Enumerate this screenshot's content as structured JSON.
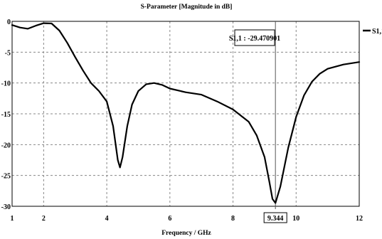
{
  "chart_data": {
    "type": "line",
    "title": "S-Parameter [Magnitude in dB]",
    "xlabel": "Frequency / GHz",
    "ylabel": "",
    "xlim": [
      1,
      12
    ],
    "ylim": [
      -30,
      0
    ],
    "xticks": [
      1,
      2,
      4,
      6,
      8,
      10,
      12
    ],
    "yticks": [
      0,
      -5,
      -10,
      -15,
      -20,
      -25,
      -30
    ],
    "ytick_labels": [
      "0",
      "-5",
      "-10",
      "-15",
      "-20",
      "-25",
      "-30"
    ],
    "grid": true,
    "legend_position": "top-right",
    "series": [
      {
        "name": "S1,1",
        "color": "#000000",
        "points": [
          [
            1.0,
            -0.6
          ],
          [
            1.25,
            -1.0
          ],
          [
            1.5,
            -1.2
          ],
          [
            1.75,
            -0.7
          ],
          [
            2.0,
            -0.3
          ],
          [
            2.25,
            -0.35
          ],
          [
            2.5,
            -1.5
          ],
          [
            2.75,
            -3.5
          ],
          [
            3.0,
            -5.8
          ],
          [
            3.25,
            -8.0
          ],
          [
            3.5,
            -10.0
          ],
          [
            3.75,
            -11.3
          ],
          [
            4.0,
            -13.0
          ],
          [
            4.2,
            -17.0
          ],
          [
            4.35,
            -22.5
          ],
          [
            4.42,
            -23.7
          ],
          [
            4.5,
            -22.0
          ],
          [
            4.65,
            -17.0
          ],
          [
            4.8,
            -13.5
          ],
          [
            5.0,
            -11.3
          ],
          [
            5.25,
            -10.2
          ],
          [
            5.5,
            -10.0
          ],
          [
            5.75,
            -10.3
          ],
          [
            6.0,
            -10.9
          ],
          [
            6.5,
            -11.5
          ],
          [
            7.0,
            -11.9
          ],
          [
            7.5,
            -13.0
          ],
          [
            8.0,
            -14.3
          ],
          [
            8.5,
            -16.3
          ],
          [
            8.75,
            -18.5
          ],
          [
            9.0,
            -22.0
          ],
          [
            9.15,
            -26.0
          ],
          [
            9.25,
            -28.8
          ],
          [
            9.344,
            -29.47
          ],
          [
            9.5,
            -26.8
          ],
          [
            9.75,
            -20.5
          ],
          [
            10.0,
            -15.5
          ],
          [
            10.25,
            -12.0
          ],
          [
            10.5,
            -9.8
          ],
          [
            10.75,
            -8.5
          ],
          [
            11.0,
            -7.7
          ],
          [
            11.5,
            -7.0
          ],
          [
            12.0,
            -6.6
          ]
        ]
      }
    ],
    "marker": {
      "x": 9.344,
      "x_label": "9.344",
      "label": "S1,1 : -29.470901"
    }
  }
}
